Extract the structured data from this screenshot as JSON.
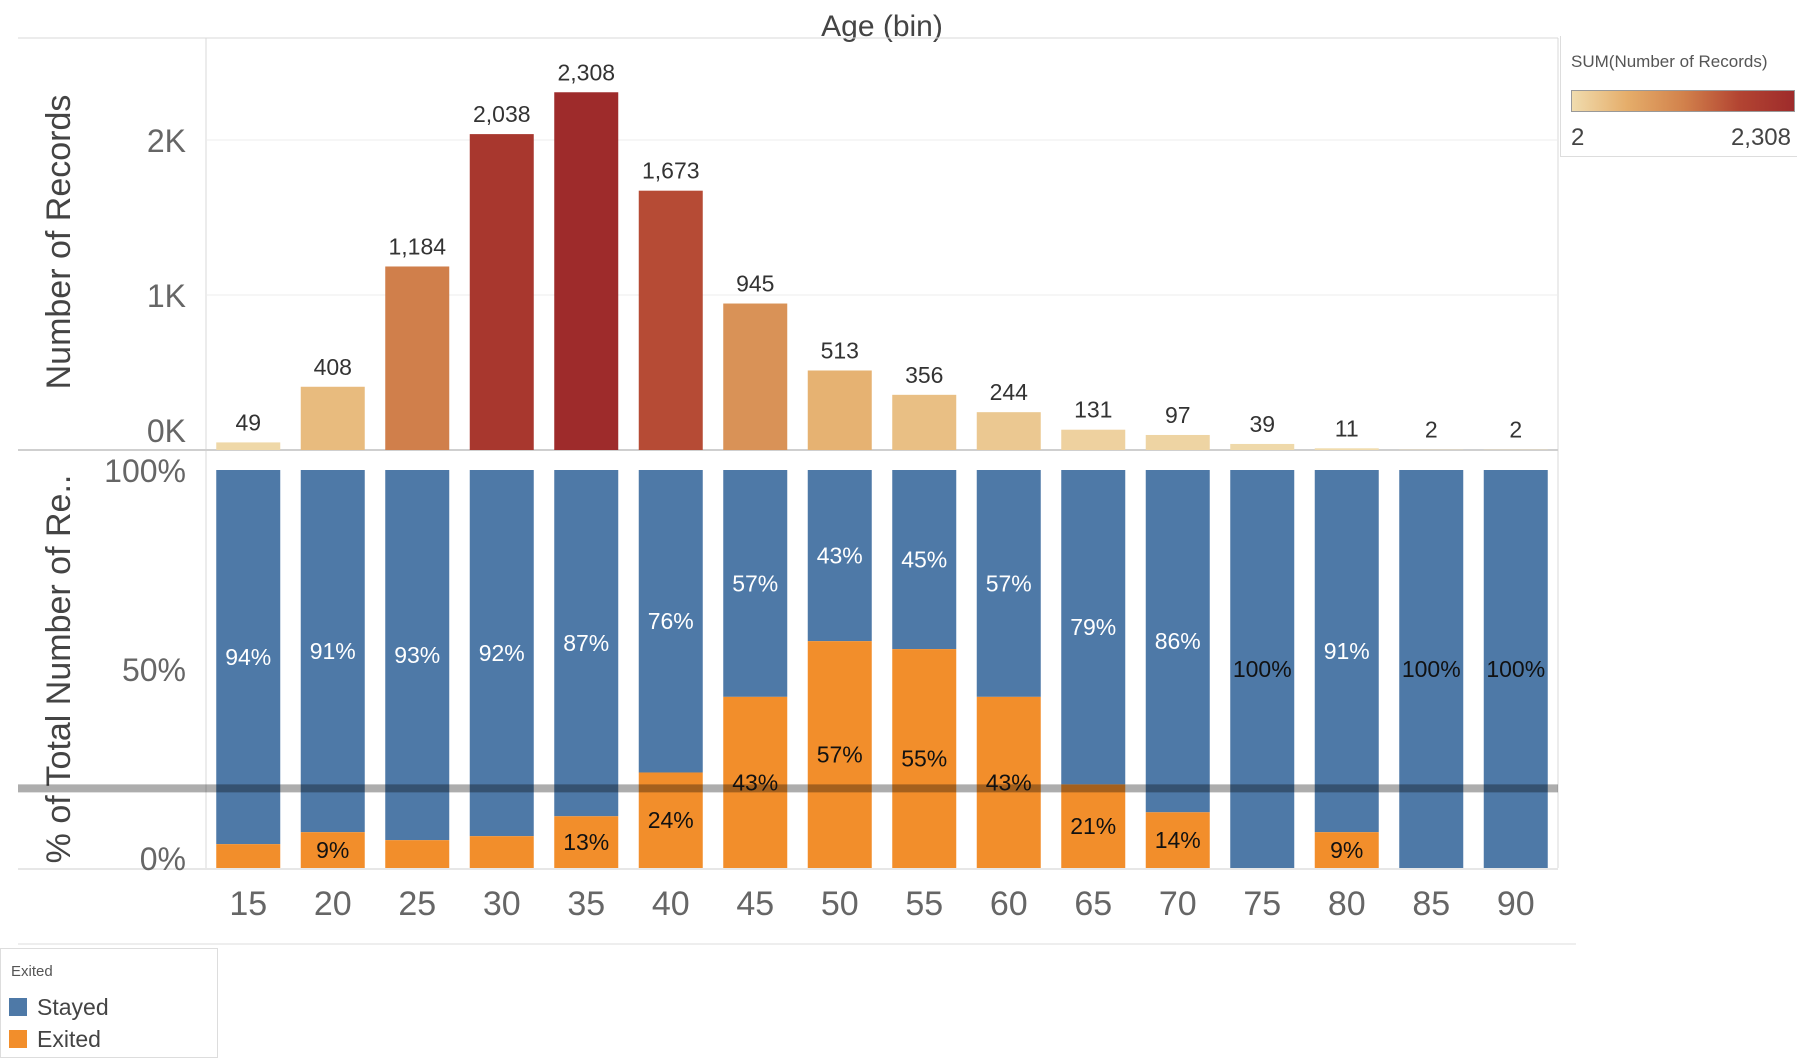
{
  "chart_data": {
    "type": "bar",
    "title": "Age (bin)",
    "categories": [
      "15",
      "20",
      "25",
      "30",
      "35",
      "40",
      "45",
      "50",
      "55",
      "60",
      "65",
      "70",
      "75",
      "80",
      "85",
      "90"
    ],
    "top_chart": {
      "ylabel": "Number of Records",
      "yticks": [
        "0K",
        "1K",
        "2K"
      ],
      "ytick_values": [
        0,
        1000,
        2000
      ],
      "ylim": [
        0,
        2600
      ],
      "values": [
        49,
        408,
        1184,
        2038,
        2308,
        1673,
        945,
        513,
        356,
        244,
        131,
        97,
        39,
        11,
        2,
        2
      ],
      "value_labels": [
        "49",
        "408",
        "1,184",
        "2,038",
        "2,308",
        "1,673",
        "945",
        "513",
        "356",
        "244",
        "131",
        "97",
        "39",
        "11",
        "2",
        "2"
      ],
      "grid": true
    },
    "bottom_chart": {
      "type": "stacked-bar-percent",
      "ylabel": "% of Total Number of Re..",
      "yticks": [
        "0%",
        "50%",
        "100%"
      ],
      "ytick_values": [
        0,
        50,
        100
      ],
      "ylim": [
        0,
        100
      ],
      "reference_line": 20,
      "series": [
        {
          "name": "Stayed",
          "values": [
            94,
            91,
            93,
            92,
            87,
            76,
            57,
            43,
            45,
            57,
            79,
            86,
            100,
            91,
            100,
            100
          ],
          "labels": [
            "94%",
            "91%",
            "93%",
            "92%",
            "87%",
            "76%",
            "57%",
            "43%",
            "45%",
            "57%",
            "79%",
            "86%",
            "100%",
            "91%",
            "100%",
            "100%"
          ]
        },
        {
          "name": "Exited",
          "values": [
            6,
            9,
            7,
            8,
            13,
            24,
            43,
            57,
            55,
            43,
            21,
            14,
            0,
            9,
            0,
            0
          ],
          "labels": [
            "",
            "9%",
            "",
            "",
            "13%",
            "24%",
            "43%",
            "57%",
            "55%",
            "43%",
            "21%",
            "14%",
            "",
            "9%",
            "",
            ""
          ]
        }
      ]
    },
    "color_legend": {
      "title": "SUM(Number of Records)",
      "min_label": "2",
      "max_label": "2,308",
      "min_value": 2,
      "max_value": 2308,
      "ramp_colors": [
        "#f0dcae",
        "#e5ad6a",
        "#d2824c",
        "#b34532",
        "#9e2b2b"
      ]
    },
    "exit_legend": {
      "title": "Exited",
      "items": [
        {
          "label": "Stayed",
          "color": "#4e79a7"
        },
        {
          "label": "Exited",
          "color": "#f28e2b"
        }
      ]
    }
  }
}
